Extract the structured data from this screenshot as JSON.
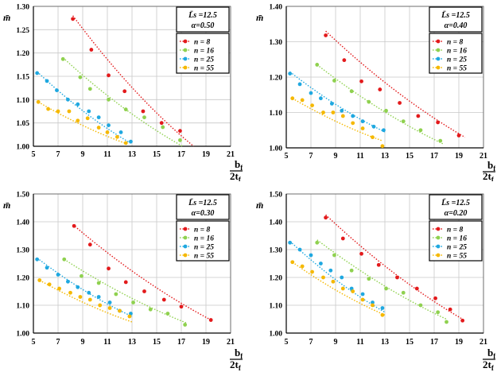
{
  "y_symbol": "m̄",
  "x_symbol_num": "b",
  "x_symbol_num_sub": "f",
  "x_symbol_den": "2t",
  "x_symbol_den_sub": "f",
  "legend_labels": [
    "n = 8",
    "n = 16",
    "n = 25",
    "n = 55"
  ],
  "series_colors": [
    "#e31a1c",
    "#8fd14f",
    "#1fa8e0",
    "#f5b800"
  ],
  "chart_data": [
    {
      "type": "scatter",
      "title": "",
      "info_line1": "L̄s =12.5",
      "info_line2": "α=0.50",
      "xlim": [
        5,
        21
      ],
      "ylim": [
        1.0,
        1.3
      ],
      "xticks": [
        "5",
        "7",
        "9",
        "11",
        "13",
        "15",
        "17",
        "19",
        "21"
      ],
      "yticks": [
        "1.00",
        "1.05",
        "1.10",
        "1.15",
        "1.20",
        "1.25",
        "1.30"
      ],
      "grid": true,
      "legend_position": "top-right",
      "series": [
        {
          "name": "n = 8",
          "x": [
            8.2,
            9.7,
            11.1,
            12.4,
            13.9,
            15.4,
            16.9
          ],
          "y": [
            1.273,
            1.207,
            1.152,
            1.118,
            1.075,
            1.05,
            1.033
          ],
          "trend": [
            [
              8.2,
              1.28
            ],
            [
              18.0,
              1.0
            ]
          ]
        },
        {
          "name": "n = 16",
          "x": [
            7.4,
            8.8,
            9.6,
            11.1,
            12.5,
            14.0,
            15.5,
            16.9
          ],
          "y": [
            1.187,
            1.148,
            1.123,
            1.1,
            1.079,
            1.062,
            1.041,
            1.013
          ],
          "trend": [
            [
              7.4,
              1.19
            ],
            [
              17.1,
              1.0
            ]
          ]
        },
        {
          "name": "n = 25",
          "x": [
            5.3,
            6.1,
            6.9,
            7.8,
            8.6,
            9.5,
            10.3,
            11.1,
            12.1,
            12.9
          ],
          "y": [
            1.157,
            1.14,
            1.12,
            1.1,
            1.09,
            1.075,
            1.062,
            1.045,
            1.03,
            1.01
          ],
          "trend": [
            [
              5.3,
              1.16
            ],
            [
              13.0,
              1.005
            ]
          ]
        },
        {
          "name": "n = 55",
          "x": [
            5.4,
            6.2,
            7.0,
            7.9,
            8.6,
            9.4,
            10.3,
            11.0,
            11.8,
            12.5
          ],
          "y": [
            1.095,
            1.08,
            1.075,
            1.075,
            1.055,
            1.06,
            1.04,
            1.03,
            1.02,
            1.007
          ],
          "trend": [
            [
              5.4,
              1.095
            ],
            [
              12.6,
              1.005
            ]
          ]
        }
      ]
    },
    {
      "type": "scatter",
      "title": "",
      "info_line1": "L̄s =12.5",
      "info_line2": "α=0.40",
      "xlim": [
        5,
        21
      ],
      "ylim": [
        1.0,
        1.4
      ],
      "xticks": [
        "5",
        "7",
        "9",
        "11",
        "13",
        "15",
        "17",
        "19",
        "21"
      ],
      "yticks": [
        "1.00",
        "1.10",
        "1.20",
        "1.30",
        "1.40"
      ],
      "grid": true,
      "legend_position": "top-right",
      "series": [
        {
          "name": "n = 8",
          "x": [
            8.2,
            9.7,
            11.1,
            12.6,
            14.2,
            15.7,
            17.3,
            19.0
          ],
          "y": [
            1.318,
            1.248,
            1.188,
            1.165,
            1.127,
            1.09,
            1.072,
            1.035
          ],
          "trend": [
            [
              8.2,
              1.33
            ],
            [
              19.5,
              1.03
            ]
          ]
        },
        {
          "name": "n = 16",
          "x": [
            7.5,
            8.9,
            10.3,
            11.7,
            13.1,
            14.5,
            15.9,
            17.5
          ],
          "y": [
            1.235,
            1.19,
            1.16,
            1.13,
            1.105,
            1.075,
            1.05,
            1.02
          ],
          "trend": [
            [
              7.5,
              1.235
            ],
            [
              17.8,
              1.01
            ]
          ]
        },
        {
          "name": "n = 25",
          "x": [
            5.3,
            6.1,
            7.0,
            7.8,
            8.7,
            9.5,
            10.4,
            11.2,
            12.1,
            12.9
          ],
          "y": [
            1.21,
            1.18,
            1.155,
            1.14,
            1.125,
            1.105,
            1.09,
            1.075,
            1.06,
            1.05
          ],
          "trend": [
            [
              5.3,
              1.215
            ],
            [
              13.0,
              1.045
            ]
          ]
        },
        {
          "name": "n = 55",
          "x": [
            5.5,
            6.3,
            7.1,
            8.0,
            8.8,
            9.6,
            10.4,
            11.2,
            12.0,
            12.8
          ],
          "y": [
            1.14,
            1.135,
            1.12,
            1.1,
            1.1,
            1.09,
            1.07,
            1.055,
            1.03,
            1.005
          ],
          "trend": [
            [
              5.5,
              1.14
            ],
            [
              12.8,
              1.02
            ]
          ]
        }
      ]
    },
    {
      "type": "scatter",
      "title": "",
      "info_line1": "L̄s =12.5",
      "info_line2": "α=0.30",
      "xlim": [
        5,
        21
      ],
      "ylim": [
        1.0,
        1.5
      ],
      "xticks": [
        "5",
        "7",
        "9",
        "11",
        "13",
        "15",
        "17",
        "19",
        "21"
      ],
      "yticks": [
        "1.00",
        "1.10",
        "1.20",
        "1.30",
        "1.40",
        "1.50"
      ],
      "grid": true,
      "legend_position": "top-right",
      "series": [
        {
          "name": "n = 8",
          "x": [
            8.3,
            9.6,
            11.1,
            12.5,
            14.0,
            15.6,
            17.0,
            19.4
          ],
          "y": [
            1.385,
            1.318,
            1.232,
            1.183,
            1.15,
            1.12,
            1.095,
            1.047
          ],
          "trend": [
            [
              8.2,
              1.39
            ],
            [
              19.5,
              1.045
            ]
          ]
        },
        {
          "name": "n = 16",
          "x": [
            7.5,
            8.9,
            10.3,
            11.7,
            13.1,
            14.5,
            15.9,
            17.3
          ],
          "y": [
            1.265,
            1.205,
            1.18,
            1.14,
            1.11,
            1.085,
            1.07,
            1.03
          ],
          "trend": [
            [
              7.5,
              1.265
            ],
            [
              17.5,
              1.035
            ]
          ]
        },
        {
          "name": "n = 25",
          "x": [
            5.3,
            6.1,
            7.0,
            7.8,
            8.6,
            9.5,
            10.3,
            11.2,
            12.0,
            12.9
          ],
          "y": [
            1.265,
            1.235,
            1.21,
            1.185,
            1.165,
            1.145,
            1.13,
            1.11,
            1.08,
            1.07
          ],
          "trend": [
            [
              5.3,
              1.27
            ],
            [
              13.0,
              1.06
            ]
          ]
        },
        {
          "name": "n = 55",
          "x": [
            5.5,
            6.3,
            7.1,
            8.0,
            8.8,
            9.6,
            10.4,
            11.2,
            12.0,
            12.8
          ],
          "y": [
            1.19,
            1.175,
            1.16,
            1.145,
            1.13,
            1.12,
            1.1,
            1.09,
            1.08,
            1.06
          ],
          "trend": [
            [
              5.5,
              1.19
            ],
            [
              13.0,
              1.04
            ]
          ]
        }
      ]
    },
    {
      "type": "scatter",
      "title": "",
      "info_line1": "L̄s =12.5",
      "info_line2": "α=0.20",
      "xlim": [
        5,
        21
      ],
      "ylim": [
        1.0,
        1.5
      ],
      "xticks": [
        "5",
        "7",
        "9",
        "11",
        "13",
        "15",
        "17",
        "19",
        "21"
      ],
      "yticks": [
        "1.00",
        "1.10",
        "1.20",
        "1.30",
        "1.40",
        "1.50"
      ],
      "grid": true,
      "legend_position": "top-right",
      "series": [
        {
          "name": "n = 8",
          "x": [
            8.2,
            9.6,
            11.1,
            12.5,
            14.0,
            15.6,
            17.1,
            18.3,
            19.3
          ],
          "y": [
            1.415,
            1.34,
            1.285,
            1.245,
            1.2,
            1.16,
            1.125,
            1.085,
            1.045
          ],
          "trend": [
            [
              8.2,
              1.425
            ],
            [
              19.5,
              1.045
            ]
          ]
        },
        {
          "name": "n = 16",
          "x": [
            7.5,
            8.9,
            10.3,
            11.7,
            13.1,
            14.5,
            15.9,
            17.3,
            18.0
          ],
          "y": [
            1.325,
            1.28,
            1.225,
            1.195,
            1.16,
            1.145,
            1.1,
            1.075,
            1.04
          ],
          "trend": [
            [
              7.5,
              1.335
            ],
            [
              18.0,
              1.05
            ]
          ]
        },
        {
          "name": "n = 25",
          "x": [
            5.3,
            6.1,
            7.0,
            7.8,
            8.6,
            9.5,
            10.3,
            11.2,
            12.0,
            12.8
          ],
          "y": [
            1.325,
            1.3,
            1.28,
            1.25,
            1.225,
            1.2,
            1.16,
            1.14,
            1.11,
            1.09
          ],
          "trend": [
            [
              5.3,
              1.33
            ],
            [
              13.0,
              1.075
            ]
          ]
        },
        {
          "name": "n = 55",
          "x": [
            5.5,
            6.3,
            7.1,
            8.0,
            8.8,
            9.6,
            10.4,
            11.2,
            12.0,
            12.8
          ],
          "y": [
            1.255,
            1.24,
            1.22,
            1.2,
            1.185,
            1.16,
            1.15,
            1.12,
            1.1,
            1.065
          ],
          "trend": [
            [
              5.5,
              1.255
            ],
            [
              13.0,
              1.065
            ]
          ]
        }
      ]
    }
  ]
}
